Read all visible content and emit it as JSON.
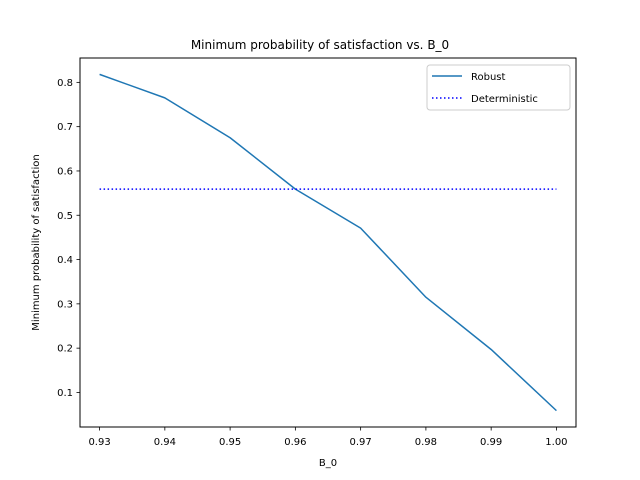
{
  "chart_data": {
    "type": "line",
    "title": "Minimum probability of satisfaction vs. B_0",
    "xlabel": "B_0",
    "ylabel": "Minimum probability of satisfaction",
    "xlim": [
      0.927,
      1.003
    ],
    "ylim": [
      0.022,
      0.855
    ],
    "xticks": [
      0.93,
      0.94,
      0.95,
      0.96,
      0.97,
      0.98,
      0.99,
      1.0
    ],
    "xtick_labels": [
      "0.93",
      "0.94",
      "0.95",
      "0.96",
      "0.97",
      "0.98",
      "0.99",
      "1.00"
    ],
    "yticks": [
      0.1,
      0.2,
      0.3,
      0.4,
      0.5,
      0.6,
      0.7,
      0.8
    ],
    "ytick_labels": [
      "0.1",
      "0.2",
      "0.3",
      "0.4",
      "0.5",
      "0.6",
      "0.7",
      "0.8"
    ],
    "grid": false,
    "legend_position": "upper right",
    "series": [
      {
        "name": "Robust",
        "color": "#1f77b4",
        "style": "solid",
        "x": [
          0.93,
          0.94,
          0.95,
          0.96,
          0.97,
          0.98,
          0.99,
          1.0
        ],
        "y": [
          0.818,
          0.765,
          0.675,
          0.559,
          0.471,
          0.315,
          0.197,
          0.059
        ]
      },
      {
        "name": "Deterministic",
        "color": "#0000ff",
        "style": "dotted",
        "x": [
          0.93,
          0.94,
          0.95,
          0.96,
          0.97,
          0.98,
          0.99,
          1.0
        ],
        "y": [
          0.559,
          0.559,
          0.559,
          0.559,
          0.559,
          0.559,
          0.559,
          0.559
        ]
      }
    ]
  }
}
